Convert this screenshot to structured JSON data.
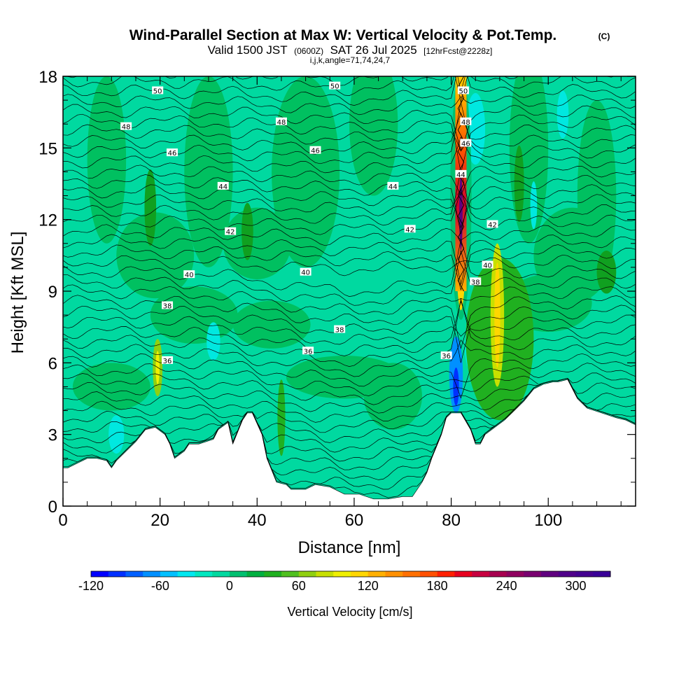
{
  "header": {
    "title": "Wind-Parallel Section at Max W: Vertical Velocity & Pot.Temp.",
    "copyright": "(C)",
    "subtitle_a": "Valid 1500 JST",
    "subtitle_b": "(0600Z)",
    "subtitle_c": "SAT 26 Jul 2025",
    "subtitle_d": "[12hrFcst@2228z]",
    "subtitle_e": "i,j,k,angle=71,74,24,7"
  },
  "colors": {
    "background_field": "#00d9a0",
    "grid_green": "#00c060",
    "dark_green": "#10a020",
    "cyan": "#00e8e0",
    "terrain": "#ffffff",
    "contour": "#000000"
  },
  "chart_data": {
    "type": "heatmap",
    "xlabel": "Distance [nm]",
    "ylabel": "Height [Kft MSL]",
    "xlim": [
      0,
      118
    ],
    "ylim": [
      0,
      18
    ],
    "xticks": [
      "0",
      "20",
      "40",
      "60",
      "80",
      "100"
    ],
    "yticks": [
      "0",
      "3",
      "6",
      "9",
      "12",
      "15",
      "18"
    ],
    "colorbar": {
      "label": "Vertical Velocity [cm/s]",
      "min": -120,
      "max": 330,
      "step": 15,
      "tick_labels": [
        "-120",
        "-60",
        "0",
        "60",
        "120",
        "180",
        "240",
        "300"
      ],
      "colors": [
        "#0000ff",
        "#0030ff",
        "#0060ff",
        "#0090ff",
        "#00c0ff",
        "#00e8f0",
        "#00e8c0",
        "#00d9a0",
        "#00c070",
        "#00b040",
        "#20b020",
        "#50c020",
        "#90d010",
        "#c8e000",
        "#f0f000",
        "#ffd700",
        "#ffb000",
        "#ff9000",
        "#ff7000",
        "#ff5000",
        "#ff2000",
        "#e80020",
        "#c80040",
        "#a80050",
        "#900060",
        "#7a0070",
        "#600080",
        "#50008a",
        "#440090",
        "#3a0098"
      ]
    },
    "terrain_profile": {
      "x": [
        0,
        1,
        3,
        5,
        7,
        9,
        10,
        11,
        13,
        15,
        17,
        19,
        21,
        22,
        23,
        25,
        26,
        28,
        31,
        32,
        34,
        35,
        37,
        38,
        39,
        41,
        42,
        44,
        46,
        47,
        48,
        50,
        52,
        55,
        58,
        61,
        64,
        67,
        70,
        72,
        74,
        75,
        76,
        78,
        79,
        80,
        82,
        84,
        85,
        86,
        87,
        89,
        91,
        93,
        95,
        97,
        99,
        101,
        102,
        104,
        106,
        108,
        111,
        114,
        116,
        118
      ],
      "height": [
        1.6,
        1.6,
        1.8,
        2.0,
        2.0,
        1.9,
        1.6,
        1.9,
        2.3,
        2.7,
        3.2,
        3.3,
        3.0,
        2.6,
        2.0,
        2.3,
        2.6,
        2.6,
        2.8,
        3.2,
        3.5,
        2.6,
        3.6,
        3.9,
        3.9,
        3.0,
        2.0,
        1.0,
        0.9,
        0.7,
        0.7,
        0.7,
        0.9,
        0.8,
        0.5,
        0.5,
        0.3,
        0.3,
        0.4,
        0.4,
        1.0,
        1.4,
        2.0,
        3.0,
        3.7,
        3.9,
        3.9,
        3.2,
        2.6,
        2.6,
        3.0,
        3.3,
        3.6,
        4.0,
        4.4,
        4.9,
        5.1,
        5.2,
        5.2,
        5.3,
        4.5,
        4.1,
        3.9,
        3.7,
        3.6,
        3.4
      ]
    },
    "wmax_location": {
      "x": 82,
      "height": 12
    },
    "theta_contours": [
      {
        "label": "50",
        "label_x": 19.5,
        "label_y": 17.4
      },
      {
        "label": "50",
        "label_x": 56,
        "label_y": 17.6
      },
      {
        "label": "50",
        "label_x": 82.5,
        "label_y": 17.4
      },
      {
        "label": "48",
        "label_x": 13,
        "label_y": 15.9
      },
      {
        "label": "48",
        "label_x": 45,
        "label_y": 16.1
      },
      {
        "label": "48",
        "label_x": 83,
        "label_y": 16.1
      },
      {
        "label": "46",
        "label_x": 22.5,
        "label_y": 14.8
      },
      {
        "label": "46",
        "label_x": 52,
        "label_y": 14.9
      },
      {
        "label": "46",
        "label_x": 83,
        "label_y": 15.2
      },
      {
        "label": "44",
        "label_x": 33,
        "label_y": 13.4
      },
      {
        "label": "44",
        "label_x": 68,
        "label_y": 13.4
      },
      {
        "label": "44",
        "label_x": 82,
        "label_y": 13.9
      },
      {
        "label": "42",
        "label_x": 34.5,
        "label_y": 11.5
      },
      {
        "label": "42",
        "label_x": 71.5,
        "label_y": 11.6
      },
      {
        "label": "42",
        "label_x": 88.5,
        "label_y": 11.8
      },
      {
        "label": "40",
        "label_x": 26,
        "label_y": 9.7
      },
      {
        "label": "40",
        "label_x": 50,
        "label_y": 9.8
      },
      {
        "label": "40",
        "label_x": 87.5,
        "label_y": 10.1
      },
      {
        "label": "38",
        "label_x": 21.5,
        "label_y": 8.4
      },
      {
        "label": "38",
        "label_x": 57,
        "label_y": 7.4
      },
      {
        "label": "38",
        "label_x": 85,
        "label_y": 9.4
      },
      {
        "label": "36",
        "label_x": 21.5,
        "label_y": 6.1
      },
      {
        "label": "36",
        "label_x": 50.5,
        "label_y": 6.5
      },
      {
        "label": "36",
        "label_x": 79,
        "label_y": 6.3
      }
    ]
  }
}
